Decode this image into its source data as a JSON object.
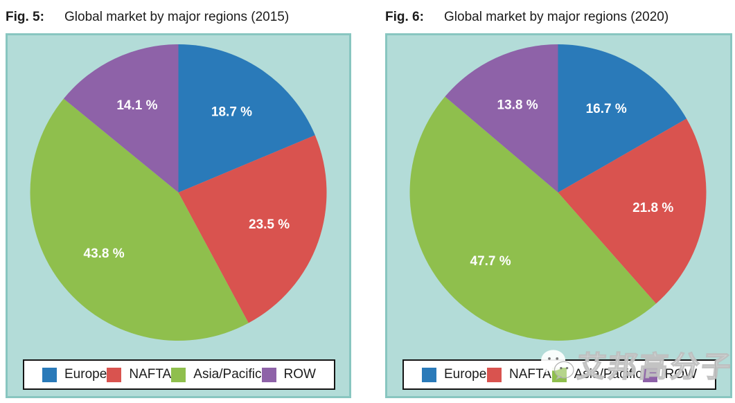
{
  "chart_data": [
    {
      "type": "pie",
      "fig_label": "Fig. 5:",
      "title": "Global market by major regions (2015)",
      "categories": [
        "Europe",
        "NAFTA",
        "Asia/Pacific",
        "ROW"
      ],
      "values": [
        18.7,
        23.5,
        43.8,
        14.1
      ],
      "value_labels": [
        "18.7 %",
        "23.5 %",
        "43.8 %",
        "14.1 %"
      ],
      "colors": [
        "#2a7ab9",
        "#d9534f",
        "#8fbf4d",
        "#8e62a8"
      ],
      "start_angle_deg": 0,
      "direction": "clockwise",
      "legend": [
        "Europe",
        "NAFTA",
        "Asia/Pacific",
        "ROW"
      ],
      "legend_position": "bottom"
    },
    {
      "type": "pie",
      "fig_label": "Fig. 6:",
      "title": "Global market by major regions (2020)",
      "categories": [
        "Europe",
        "NAFTA",
        "Asia/Pacific",
        "ROW"
      ],
      "values": [
        16.7,
        21.8,
        47.7,
        13.8
      ],
      "value_labels": [
        "16.7 %",
        "21.8 %",
        "47.7 %",
        "13.8 %"
      ],
      "colors": [
        "#2a7ab9",
        "#d9534f",
        "#8fbf4d",
        "#8e62a8"
      ],
      "start_angle_deg": 0,
      "direction": "clockwise",
      "legend": [
        "Europe",
        "NAFTA",
        "Asia/Pacific",
        "ROW"
      ],
      "legend_position": "bottom"
    }
  ],
  "watermark": {
    "text": "艾邦高分子",
    "icon": "wechat-icon"
  },
  "palette": {
    "panel_background": "#b3dcd8",
    "panel_border": "#88c6c0",
    "slice_label_text": "#ffffff",
    "title_text": "#1b1b1b",
    "legend_border": "#141414",
    "legend_background": "#ffffff"
  }
}
